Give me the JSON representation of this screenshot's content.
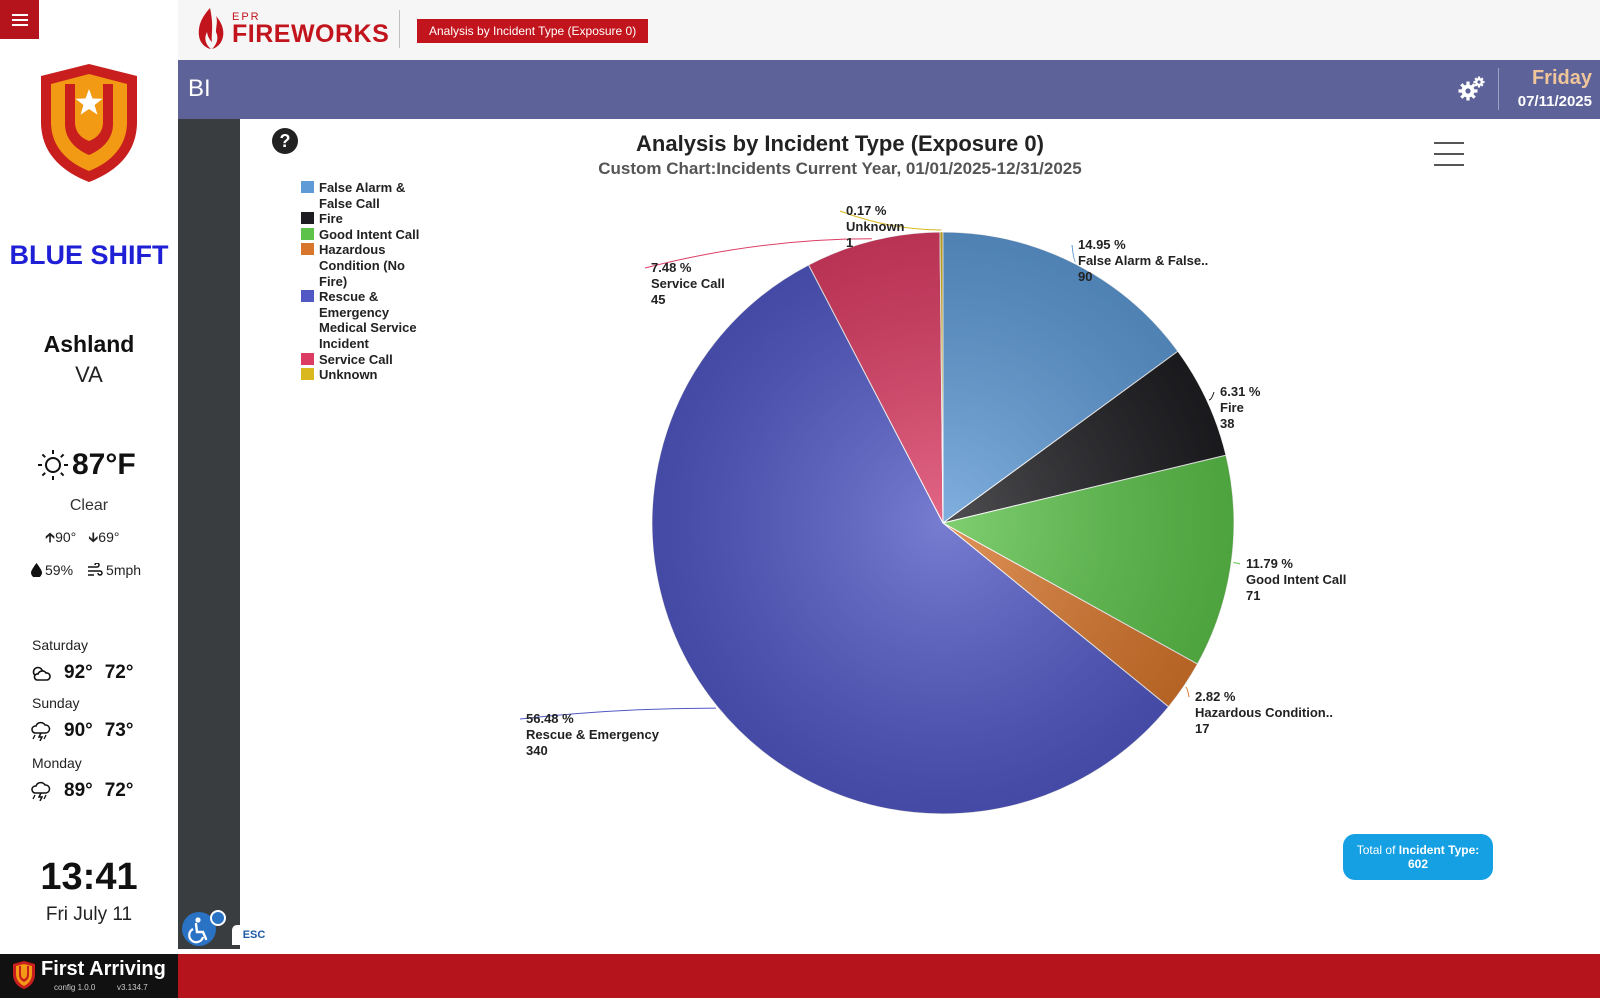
{
  "header": {
    "logo_small": "EPR",
    "logo_main": "FIREWORKS",
    "page_tag": "Analysis by Incident Type (Exposure 0)",
    "section": "BI",
    "day": "Friday",
    "date": "07/11/2025"
  },
  "sidebar": {
    "shift": "BLUE SHIFT",
    "city": "Ashland",
    "state": "VA",
    "weather": {
      "temp": "87°F",
      "condition": "Clear",
      "high": "90°",
      "low": "69°",
      "humidity": "59%",
      "wind": "5mph"
    },
    "forecast": [
      {
        "day": "Saturday",
        "high": "92°",
        "low": "72°",
        "icon": "partly-cloudy-icon"
      },
      {
        "day": "Sunday",
        "high": "90°",
        "low": "73°",
        "icon": "thunderstorm-icon"
      },
      {
        "day": "Monday",
        "high": "89°",
        "low": "72°",
        "icon": "thunderstorm-icon"
      }
    ],
    "time": "13:41",
    "date_text": "Fri July 11"
  },
  "chart": {
    "help": "?",
    "total_label": "Total of",
    "total_key": "Incident Type:",
    "total_value": "602"
  },
  "chart_data": {
    "type": "pie",
    "title": "Analysis by Incident Type (Exposure 0)",
    "subtitle": "Custom Chart:Incidents Current Year, 01/01/2025-12/31/2025",
    "legend_position": "top-left",
    "slices": [
      {
        "legend": "False Alarm & False Call",
        "label": "False Alarm & False..",
        "value": 90,
        "percent": "14.95 %",
        "color": "#5e9ad6"
      },
      {
        "legend": "Fire",
        "label": "Fire",
        "value": 38,
        "percent": "6.31 %",
        "color": "#1e1e22"
      },
      {
        "legend": "Good Intent Call",
        "label": "Good Intent Call",
        "value": 71,
        "percent": "11.79 %",
        "color": "#5cc24a"
      },
      {
        "legend": "Hazardous Condition (No Fire)",
        "label": "Hazardous Condition..",
        "value": 17,
        "percent": "2.82 %",
        "color": "#d8762c"
      },
      {
        "legend": "Rescue & Emergency Medical Service Incident",
        "label": "Rescue & Emergency",
        "value": 340,
        "percent": "56.48 %",
        "color": "#5158c4"
      },
      {
        "legend": "Service Call",
        "label": "Service Call",
        "value": 45,
        "percent": "7.48 %",
        "color": "#dc3c64"
      },
      {
        "legend": "Unknown",
        "label": "Unknown",
        "value": 1,
        "percent": "0.17 %",
        "color": "#d8b81e"
      }
    ]
  },
  "footer": {
    "brand": "First Arriving",
    "config": "config 1.0.0",
    "version": "v3.134.7",
    "esc": "ESC"
  }
}
